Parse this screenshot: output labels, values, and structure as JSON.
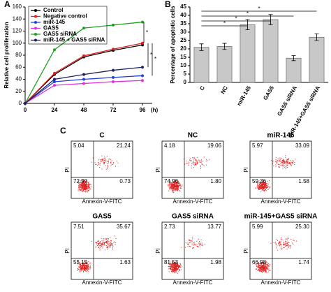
{
  "panel_labels": [
    "A",
    "B",
    "C"
  ],
  "chart_data": [
    {
      "type": "line",
      "x": [
        0,
        24,
        48,
        72,
        96
      ],
      "x_unit_label": "(h)",
      "xlim": [
        0,
        104
      ],
      "xticks": [
        0,
        24,
        48,
        72,
        96
      ],
      "y_label": "Relative cell proliferation",
      "ylim": [
        0,
        160
      ],
      "yticks": [
        0,
        20,
        40,
        60,
        80,
        100,
        120,
        140,
        160
      ],
      "legend": "top-left",
      "series": [
        {
          "name": "Control",
          "color": "#000000",
          "values": [
            0,
            48,
            77,
            88,
            97
          ]
        },
        {
          "name": "Negative control",
          "color": "#e02020",
          "values": [
            0,
            50,
            79,
            90,
            100
          ]
        },
        {
          "name": "miR-145",
          "color": "#2040e0",
          "values": [
            0,
            36,
            40,
            43,
            46
          ]
        },
        {
          "name": "GAS5",
          "color": "#e030e0",
          "values": [
            0,
            30,
            33,
            36,
            38
          ]
        },
        {
          "name": "GAS5 siRNA",
          "color": "#20a020",
          "values": [
            0,
            89,
            125,
            130,
            135
          ]
        },
        {
          "name": "miR-145 + GAS5 siRNA",
          "color": "#202060",
          "values": [
            0,
            40,
            48,
            55,
            60
          ]
        }
      ],
      "significance_labels": [
        "*",
        "*",
        "*"
      ]
    },
    {
      "type": "bar",
      "categories": [
        "C",
        "NC",
        "miR-145",
        "GAS5",
        "GAS5 siRNA",
        "miR-145+GAS5 siRNA"
      ],
      "values": [
        21,
        21.5,
        34.5,
        37.5,
        14.5,
        27
      ],
      "errors": [
        2,
        1.8,
        3,
        3,
        1.5,
        2
      ],
      "color": "#c8c8c8",
      "y_label": "Percentage of apoptotic cells",
      "ylim": [
        0,
        45
      ],
      "yticks": [
        0,
        5,
        10,
        15,
        20,
        25,
        30,
        35,
        40,
        45
      ],
      "significance_labels": [
        "*",
        "*",
        "*",
        "*"
      ]
    }
  ],
  "flow_plots": {
    "x_label": "Annexin-V-FITC",
    "y_label": "PI",
    "plots": [
      {
        "title": "C",
        "quadrants": [
          "5.04",
          "21.24",
          "72.99",
          "0.73"
        ]
      },
      {
        "title": "NC",
        "quadrants": [
          "4.18",
          "19.06",
          "74.96",
          "1.80"
        ]
      },
      {
        "title": "miR-145",
        "quadrants": [
          "5.97",
          "33.09",
          "59.36",
          "1.58"
        ]
      },
      {
        "title": "GAS5",
        "quadrants": [
          "7.51",
          "35.67",
          "55.19",
          "1.63"
        ]
      },
      {
        "title": "GAS5 siRNA",
        "quadrants": [
          "2.73",
          "13.77",
          "81.53",
          "1.98"
        ]
      },
      {
        "title": "miR-145+GAS5 siRNA",
        "quadrants": [
          "5.99",
          "25.30",
          "66.98",
          "1.74"
        ]
      }
    ]
  }
}
